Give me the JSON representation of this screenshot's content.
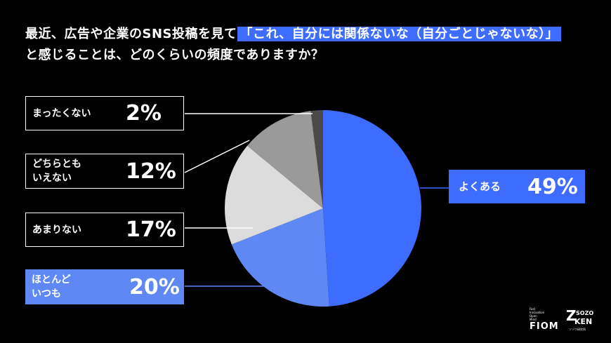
{
  "title": {
    "line1_prefix": "最近、広告や企業のSNS投稿を見て",
    "line1_highlight": "「これ、自分には関係ないな（自分ごとじゃないな）」",
    "line2": "と感じることは、どのくらいの頻度でありますか？"
  },
  "chart_data": {
    "type": "pie",
    "title": "最近、広告や企業のSNS投稿を見て「これ、自分には関係ないな（自分ごとじゃないな）」と感じることは、どのくらいの頻度でありますか？",
    "unit": "%",
    "slices": [
      {
        "label": "よくある",
        "value": 49,
        "value_label": "49%",
        "color": "#3d6cff"
      },
      {
        "label": "ほとんどいつも",
        "value": 20,
        "value_label": "20%",
        "color": "#5f88f5"
      },
      {
        "label": "あまりない",
        "value": 17,
        "value_label": "17%",
        "color": "#dcdcdc"
      },
      {
        "label": "どちらともいえない",
        "value": 12,
        "value_label": "12%",
        "color": "#9a9a9a"
      },
      {
        "label": "まったくない",
        "value": 2,
        "value_label": "2%",
        "color": "#4a4a4a"
      }
    ]
  },
  "labels": {
    "yokuaru": {
      "text": "よくある",
      "pct": "49%"
    },
    "hotondo": {
      "text": "ほとんど\nいつも",
      "pct": "20%"
    },
    "amari": {
      "text": "あまりない",
      "pct": "17%"
    },
    "dochira": {
      "text": "どちらとも\nいえない",
      "pct": "12%"
    },
    "mattaku": {
      "text": "まったくない",
      "pct": "2%"
    }
  },
  "logos": {
    "fiom_small": [
      "Fast",
      "Innovation",
      "Open",
      "Mind"
    ],
    "fiom": "FIOM",
    "sozo_top": "SOZO",
    "sozo_bottom": "KEN",
    "sozo_letter": "Z",
    "sozo_caption": "ソゾウ研究所"
  }
}
